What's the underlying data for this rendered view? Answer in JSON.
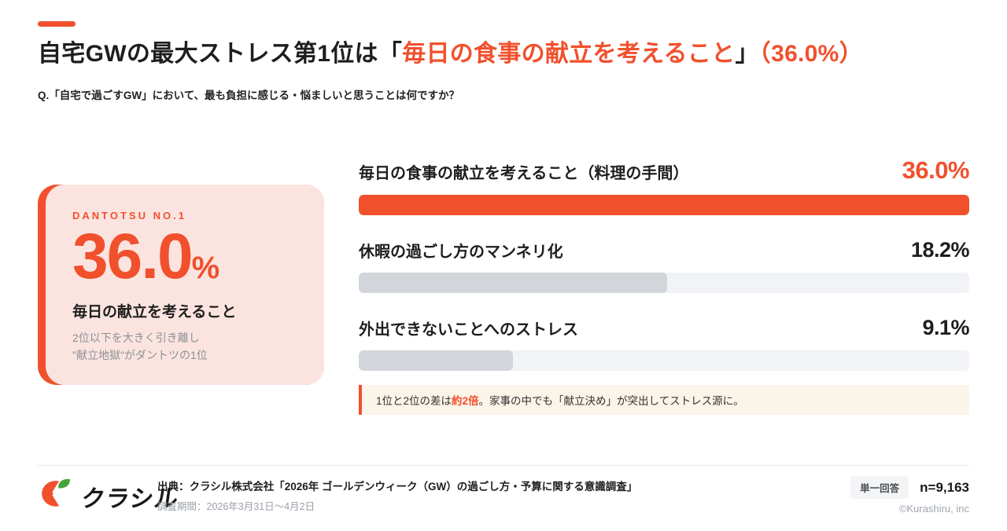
{
  "brand": {
    "accent_color": "#F1502D",
    "card_bg_color": "#FBE4E0",
    "note_bg_color": "#FBF4E8",
    "bar_track_color": "#F2F3F6",
    "bar_gray_fill_color": "#D2D6DB",
    "leaf_green_color": "#45A33C"
  },
  "header": {
    "title_segments": {
      "s0": "自宅GWの最大ストレス第1位は",
      "s1": "「",
      "s2": "毎日の食事の献立を考えること",
      "s3": "」",
      "s4": "（36.0%）"
    },
    "question": "Q.「自宅で過ごすGW」において、最も負担に感じる・悩ましいと思うことは何ですか？"
  },
  "highlight_card": {
    "eyebrow": "DANTOTSU NO.1",
    "value": "36.0",
    "unit": "%",
    "label": "毎日の献立を考えること",
    "description_line1": "2位以下を大きく引き離し",
    "description_line2": "\"献立地獄\"がダントツの1位"
  },
  "chart_data": {
    "type": "bar",
    "orientation": "horizontal",
    "max_value": 36.0,
    "unit": "%",
    "rows": [
      {
        "label": "毎日の食事の献立を考えること（料理の手間）",
        "value": 36.0,
        "display_value": "36.0%",
        "emphasized": true
      },
      {
        "label": "休暇の過ごし方のマンネリ化",
        "value": 18.2,
        "display_value": "18.2%",
        "emphasized": false
      },
      {
        "label": "外出できないことへのストレス",
        "value": 9.1,
        "display_value": "9.1%",
        "emphasized": false
      }
    ]
  },
  "note": {
    "s0": "1位と2位の差は",
    "s1": "約2倍",
    "s2": "。家事の中でも「献立決め」が突出してストレス源に。"
  },
  "footer": {
    "logo_text": "クラシル",
    "source_line": "出典：クラシル株式会社「2026年 ゴールデンウィーク（GW）の過ごし方・予算に関する意識調査」",
    "period_line": "調査期間：2026年3月31日〜4月2日",
    "answer_type_badge": "単一回答",
    "sample_size": "n=9,163",
    "copyright": "©Kurashiru, inc"
  }
}
